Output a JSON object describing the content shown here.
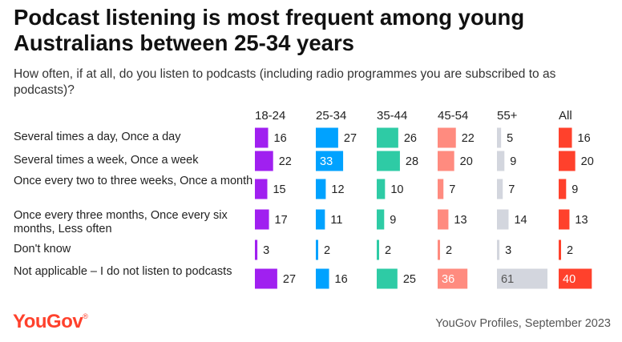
{
  "chart_data": {
    "type": "bar",
    "title": "Podcast listening is most frequent among young Australians between 25-34 years",
    "subtitle": "How often, if at all, do you listen to podcasts (including radio programmes you are subscribed to as podcasts)?",
    "categories": [
      "Several times a day, Once a day",
      "Several times a week, Once a week",
      "Once every two to three weeks, Once a month",
      "Once every three months, Once every six months, Less often",
      "Don't know",
      "Not applicable – I do not listen to podcasts"
    ],
    "series": [
      {
        "name": "18-24",
        "color": "#a020f0",
        "values": [
          16,
          22,
          15,
          17,
          3,
          27
        ]
      },
      {
        "name": "25-34",
        "color": "#00a2ff",
        "values": [
          27,
          33,
          12,
          11,
          2,
          16
        ]
      },
      {
        "name": "35-44",
        "color": "#2ecba5",
        "values": [
          26,
          28,
          10,
          9,
          2,
          25
        ]
      },
      {
        "name": "45-54",
        "color": "#ff8b7f",
        "values": [
          22,
          20,
          7,
          13,
          2,
          36
        ]
      },
      {
        "name": "55+",
        "color": "#d3d6de",
        "values": [
          5,
          9,
          7,
          14,
          3,
          61
        ]
      },
      {
        "name": "All",
        "color": "#ff412c",
        "values": [
          16,
          20,
          9,
          13,
          2,
          40
        ]
      }
    ],
    "xlim": [
      0,
      61
    ],
    "value_labels_inside_for_max": true,
    "grid": false,
    "legend": "column headers above bars"
  },
  "footer": {
    "logo": "YouGov",
    "logo_mark": "®",
    "source": "YouGov Profiles, September 2023"
  }
}
